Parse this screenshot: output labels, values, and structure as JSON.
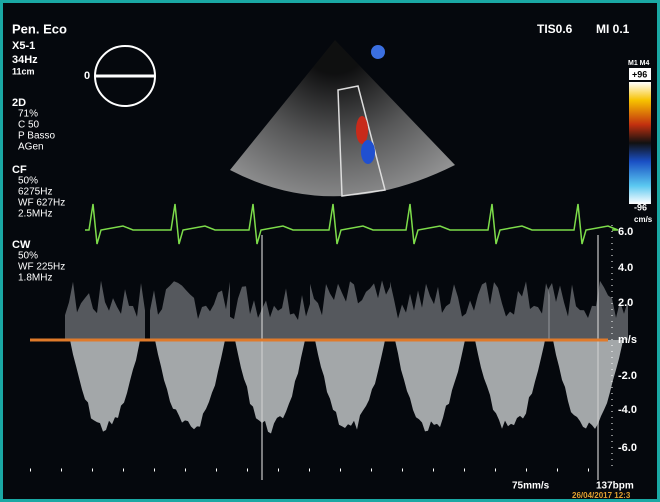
{
  "header": {
    "mode": "Pen. Eco",
    "probe": "X5-1",
    "frame_rate": "34Hz",
    "depth": "11cm",
    "tis": "TIS0.6",
    "mi": "MI 0.1"
  },
  "orientation": {
    "angle": "0"
  },
  "settings": {
    "twod": {
      "title": "2D",
      "lines": [
        "71%",
        "C 50",
        "P Basso",
        "AGen"
      ]
    },
    "cf": {
      "title": "CF",
      "lines": [
        "50%",
        "6275Hz",
        "WF 627Hz",
        "2.5MHz"
      ]
    },
    "cw": {
      "title": "CW",
      "lines": [
        "50%",
        "WF 225Hz",
        "1.8MHz"
      ]
    }
  },
  "color_bar": {
    "map": "M1 M4",
    "top": "+96",
    "bottom": "-96",
    "unit": "cm/s"
  },
  "velocity_scale": {
    "ticks": [
      "6.0",
      "4.0",
      "2.0",
      "m/s",
      "-2.0",
      "-4.0",
      "-6.0"
    ]
  },
  "footer": {
    "sweep": "75mm/s",
    "heart_rate": "137bpm",
    "datetime": "26/04/2017 12:3"
  }
}
